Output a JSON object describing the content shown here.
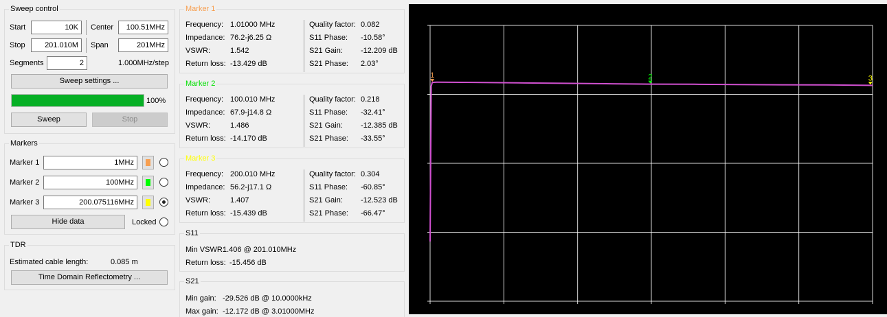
{
  "sweep_control": {
    "title": "Sweep control",
    "start_label": "Start",
    "start_value": "10K",
    "center_label": "Center",
    "center_value": "100.51MHz",
    "stop_label": "Stop",
    "stop_value": "201.010M",
    "span_label": "Span",
    "span_value": "201MHz",
    "segments_label": "Segments",
    "segments_value": "2",
    "step_text": "1.000MHz/step",
    "settings_button": "Sweep settings ...",
    "progress_percent": 100,
    "progress_text": "100%",
    "sweep_button": "Sweep",
    "stop_button": "Stop"
  },
  "markers": {
    "title": "Markers",
    "items": [
      {
        "label": "Marker 1",
        "value": "1MHz",
        "color": "#f79f50",
        "selected": false
      },
      {
        "label": "Marker 2",
        "value": "100MHz",
        "color": "#00ff00",
        "selected": false
      },
      {
        "label": "Marker 3",
        "value": "200.075116MHz",
        "color": "#ffff00",
        "selected": true
      }
    ],
    "hide_button": "Hide data",
    "locked_label": "Locked"
  },
  "tdr": {
    "title": "TDR",
    "cable_label": "Estimated cable length:",
    "cable_value": "0.085 m",
    "button": "Time Domain Reflectometry ..."
  },
  "marker_data": [
    {
      "title": "Marker 1",
      "title_color": "#f79f50",
      "frequency_label": "Frequency:",
      "frequency": "1.01000 MHz",
      "impedance_label": "Impedance:",
      "impedance": "76.2-j6.25 Ω",
      "vswr_label": "VSWR:",
      "vswr": "1.542",
      "return_loss_label": "Return loss:",
      "return_loss": "-13.429 dB",
      "quality_label": "Quality factor:",
      "quality": "0.082",
      "s11_phase_label": "S11 Phase:",
      "s11_phase": "-10.58°",
      "s21_gain_label": "S21 Gain:",
      "s21_gain": "-12.209 dB",
      "s21_phase_label": "S21 Phase:",
      "s21_phase": "2.03°"
    },
    {
      "title": "Marker 2",
      "title_color": "#00e000",
      "frequency_label": "Frequency:",
      "frequency": "100.010 MHz",
      "impedance_label": "Impedance:",
      "impedance": "67.9-j14.8 Ω",
      "vswr_label": "VSWR:",
      "vswr": "1.486",
      "return_loss_label": "Return loss:",
      "return_loss": "-14.170 dB",
      "quality_label": "Quality factor:",
      "quality": "0.218",
      "s11_phase_label": "S11 Phase:",
      "s11_phase": "-32.41°",
      "s21_gain_label": "S21 Gain:",
      "s21_gain": "-12.385 dB",
      "s21_phase_label": "S21 Phase:",
      "s21_phase": "-33.55°"
    },
    {
      "title": "Marker 3",
      "title_color": "#ffff00",
      "frequency_label": "Frequency:",
      "frequency": "200.010 MHz",
      "impedance_label": "Impedance:",
      "impedance": "56.2-j17.1 Ω",
      "vswr_label": "VSWR:",
      "vswr": "1.407",
      "return_loss_label": "Return loss:",
      "return_loss": "-15.439 dB",
      "quality_label": "Quality factor:",
      "quality": "0.304",
      "s11_phase_label": "S11 Phase:",
      "s11_phase": "-60.85°",
      "s21_gain_label": "S21 Gain:",
      "s21_gain": "-12.523 dB",
      "s21_phase_label": "S21 Phase:",
      "s21_phase": "-66.47°"
    }
  ],
  "s11": {
    "title": "S11",
    "min_vswr_label": "Min VSWR:",
    "min_vswr": "1.406 @ 201.010MHz",
    "return_loss_label": "Return loss:",
    "return_loss": "-15.456 dB"
  },
  "s21": {
    "title": "S21",
    "min_gain_label": "Min gain:",
    "min_gain": "-29.526 dB @ 10.0000kHz",
    "max_gain_label": "Max gain:",
    "max_gain": "-12.172 dB @ 3.01000MHz"
  },
  "chart_data": {
    "type": "line",
    "trace_color": "#d050d0",
    "grid": true,
    "xlim": [
      0.01,
      201.01
    ],
    "series": [
      {
        "x": [
          0.01,
          0.5,
          1.01,
          3.01,
          20,
          40,
          60,
          80,
          100.01,
          120,
          140,
          160,
          180,
          200.01,
          201.01
        ],
        "y": [
          -29.5,
          -12.6,
          -12.2,
          -12.17,
          -12.2,
          -12.25,
          -12.3,
          -12.34,
          -12.39,
          -12.4,
          -12.43,
          -12.46,
          -12.48,
          -12.52,
          -12.53
        ]
      }
    ],
    "markers": [
      {
        "label": "1",
        "x": 1.01,
        "color": "#f79f50"
      },
      {
        "label": "2",
        "x": 100.01,
        "color": "#00ff00"
      },
      {
        "label": "3",
        "x": 200.01,
        "color": "#ffff00"
      }
    ]
  }
}
